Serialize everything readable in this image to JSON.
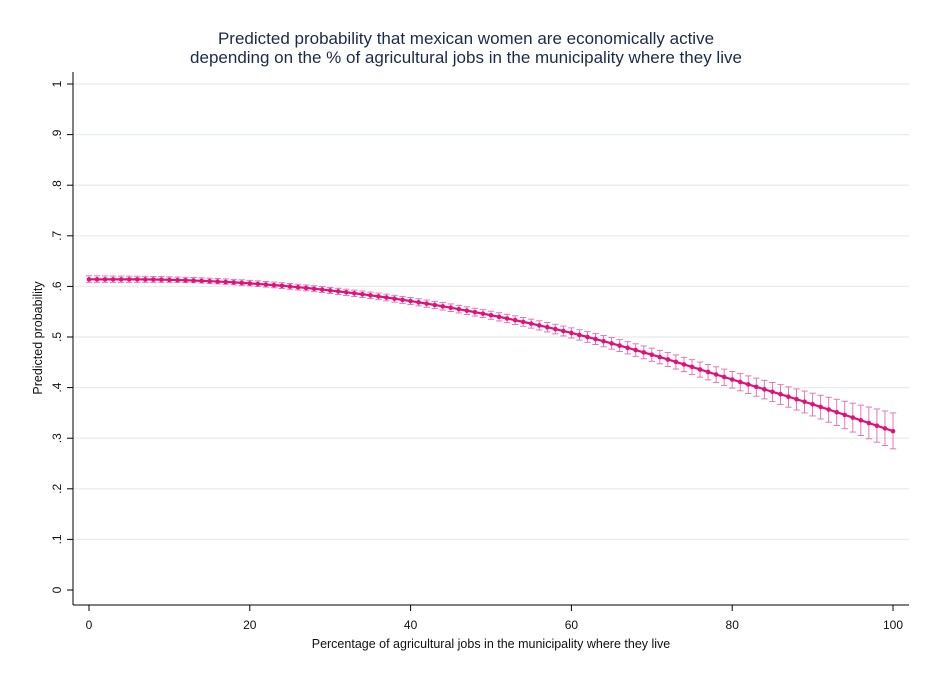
{
  "chart_data": {
    "type": "line",
    "title": [
      "Predicted probability that mexican women are economically active",
      "depending on the % of agricultural jobs in the municipality where they live"
    ],
    "xlabel": "Percentage of agricultural jobs in the municipality where they live",
    "ylabel": "Predicted probability",
    "xlim": [
      0,
      100
    ],
    "ylim": [
      0,
      1
    ],
    "x_ticks": [
      0,
      20,
      40,
      60,
      80,
      100
    ],
    "x_tick_labels": [
      "0",
      "20",
      "40",
      "60",
      "80",
      "100"
    ],
    "y_ticks": [
      0,
      0.1,
      0.2,
      0.3,
      0.4,
      0.5,
      0.6,
      0.7,
      0.8,
      0.9,
      1
    ],
    "y_tick_labels": [
      "0",
      ".1",
      ".2",
      ".3",
      ".4",
      ".5",
      ".6",
      ".7",
      ".8",
      ".9",
      "1"
    ],
    "grid": true,
    "legend": "none",
    "series": [
      {
        "x": [
          0,
          10,
          20,
          30,
          40,
          50,
          60,
          70,
          80,
          90,
          100
        ],
        "values": [
          0.614,
          0.613,
          0.606,
          0.592,
          0.571,
          0.543,
          0.508,
          0.465,
          0.416,
          0.367,
          0.314
        ],
        "ci_lower": [
          0.608,
          0.608,
          0.601,
          0.586,
          0.564,
          0.535,
          0.498,
          0.452,
          0.399,
          0.344,
          0.279
        ],
        "ci_upper": [
          0.621,
          0.619,
          0.612,
          0.598,
          0.578,
          0.551,
          0.518,
          0.478,
          0.432,
          0.389,
          0.35
        ]
      }
    ],
    "marker_step": 1,
    "colors": {
      "line": "#e0117a",
      "error_bar": "#e36ab0",
      "grid": "#e8edf1",
      "axis": "#000000"
    }
  }
}
